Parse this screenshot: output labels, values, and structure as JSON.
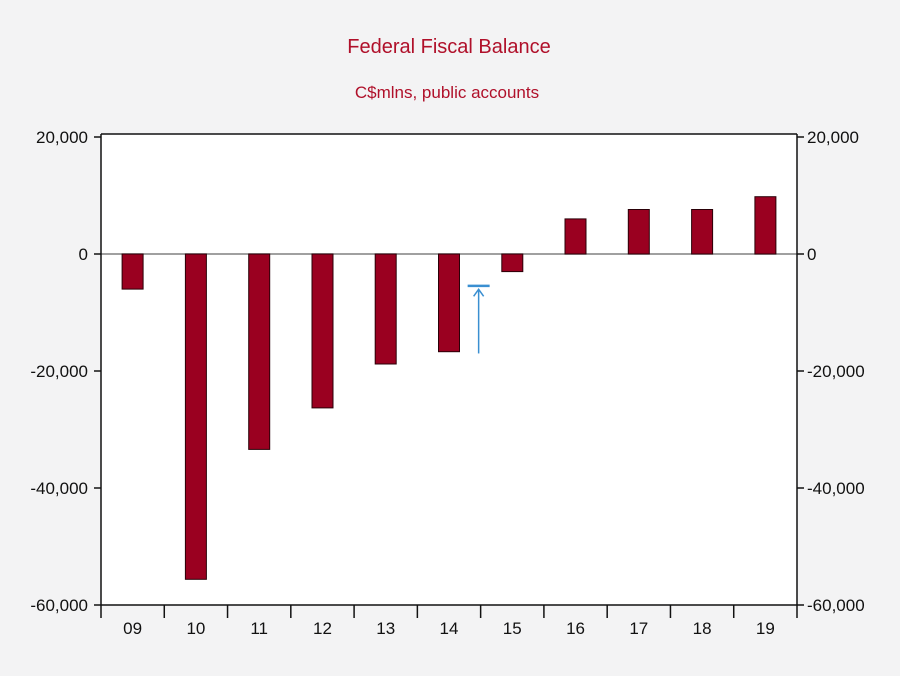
{
  "chart_data": {
    "type": "bar",
    "title": "Federal Fiscal Balance",
    "subtitle": "C$mlns, public accounts",
    "categories": [
      "09",
      "10",
      "11",
      "12",
      "13",
      "14",
      "15",
      "16",
      "17",
      "18",
      "19"
    ],
    "values": [
      -6000,
      -55600,
      -33400,
      -26300,
      -18800,
      -16700,
      -3000,
      6000,
      7600,
      7600,
      9800
    ],
    "ylim": [
      -60000,
      20000
    ],
    "yticks": [
      20000,
      0,
      -20000,
      -40000,
      -60000
    ],
    "ytick_labels": [
      "20,000",
      "0",
      "-20,000",
      "-40,000",
      "-60,000"
    ],
    "grid": false,
    "zero_line": true,
    "annotation": {
      "type": "arrow",
      "category_between": [
        "14",
        "15"
      ],
      "from_value": -17000,
      "to_value": -5700,
      "color": "#3a8fd1"
    },
    "colors": {
      "bar": "#9a0020",
      "bar_edge": "#2a0008",
      "title": "#b0102a",
      "axis": "#111111",
      "zero_line": "#808080"
    }
  }
}
